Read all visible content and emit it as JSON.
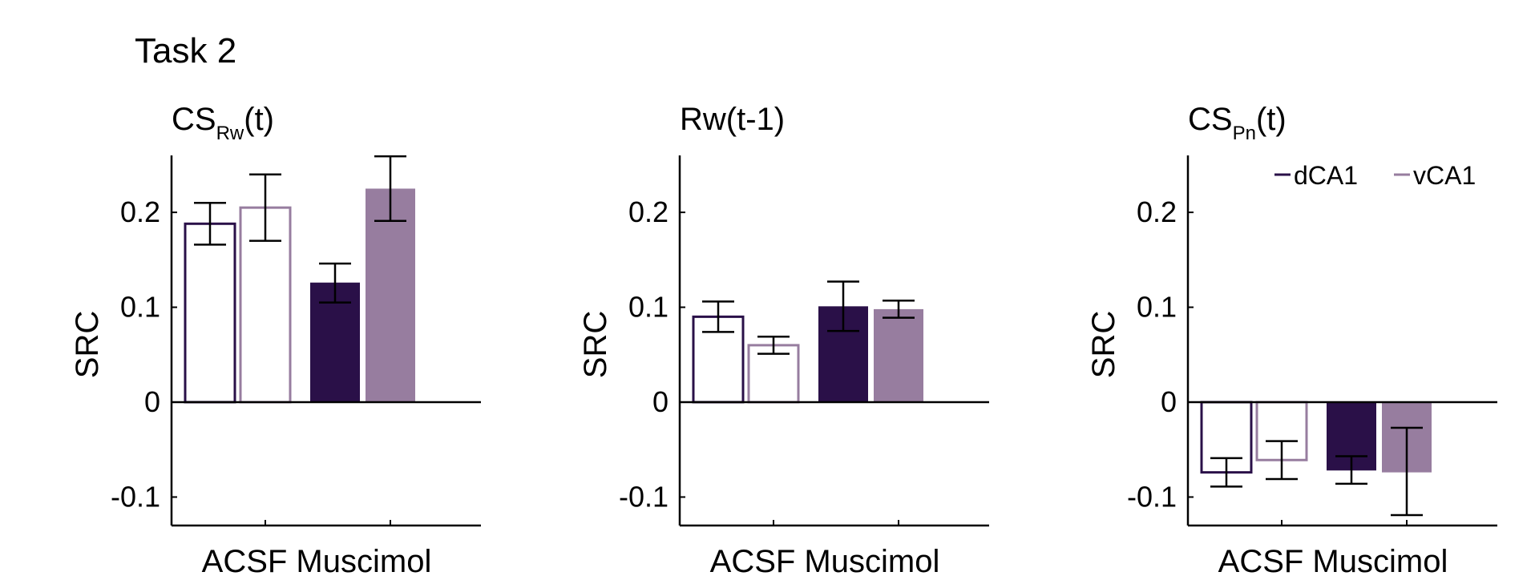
{
  "figure_title": "Task 2",
  "colors": {
    "dCA1": "#2a1048",
    "vCA1": "#977d9f",
    "axis": "#000000",
    "error": "#000000"
  },
  "legend": {
    "placement": "top-right",
    "entries": [
      "dCA1",
      "vCA1"
    ]
  },
  "chart_data": [
    {
      "type": "bar",
      "title_main": "CS",
      "title_sub": "Rw",
      "title_suffix": "(t)",
      "xlabel": "ACSF Muscimol",
      "ylabel": "SRC",
      "ylim": [
        -0.13,
        0.26
      ],
      "yticks": [
        -0.1,
        0,
        0.1,
        0.2
      ],
      "ytick_labels": [
        "-0.1",
        "0",
        "0.1",
        "0.2"
      ],
      "bars": [
        {
          "condition": "ACSF",
          "region": "dCA1",
          "style": "outline",
          "value": 0.188,
          "err_low": 0.166,
          "err_high": 0.21
        },
        {
          "condition": "ACSF",
          "region": "vCA1",
          "style": "outline",
          "value": 0.205,
          "err_low": 0.17,
          "err_high": 0.24
        },
        {
          "condition": "Muscimol",
          "region": "dCA1",
          "style": "filled",
          "value": 0.126,
          "err_low": 0.105,
          "err_high": 0.146
        },
        {
          "condition": "Muscimol",
          "region": "vCA1",
          "style": "filled",
          "value": 0.225,
          "err_low": 0.191,
          "err_high": 0.259
        }
      ]
    },
    {
      "type": "bar",
      "title_main": "Rw(t-1)",
      "title_sub": "",
      "title_suffix": "",
      "xlabel": "ACSF Muscimol",
      "ylabel": "SRC",
      "ylim": [
        -0.13,
        0.26
      ],
      "yticks": [
        -0.1,
        0,
        0.1,
        0.2
      ],
      "ytick_labels": [
        "-0.1",
        "0",
        "0.1",
        "0.2"
      ],
      "bars": [
        {
          "condition": "ACSF",
          "region": "dCA1",
          "style": "outline",
          "value": 0.09,
          "err_low": 0.074,
          "err_high": 0.106
        },
        {
          "condition": "ACSF",
          "region": "vCA1",
          "style": "outline",
          "value": 0.06,
          "err_low": 0.051,
          "err_high": 0.069
        },
        {
          "condition": "Muscimol",
          "region": "dCA1",
          "style": "filled",
          "value": 0.101,
          "err_low": 0.075,
          "err_high": 0.127
        },
        {
          "condition": "Muscimol",
          "region": "vCA1",
          "style": "filled",
          "value": 0.098,
          "err_low": 0.089,
          "err_high": 0.107
        }
      ]
    },
    {
      "type": "bar",
      "title_main": "CS",
      "title_sub": "Pn",
      "title_suffix": "(t)",
      "xlabel": "ACSF Muscimol",
      "ylabel": "SRC",
      "ylim": [
        -0.13,
        0.26
      ],
      "yticks": [
        -0.1,
        0,
        0.1,
        0.2
      ],
      "ytick_labels": [
        "-0.1",
        "0",
        "0.1",
        "0.2"
      ],
      "show_legend": true,
      "bars": [
        {
          "condition": "ACSF",
          "region": "dCA1",
          "style": "outline",
          "value": -0.074,
          "err_low": -0.089,
          "err_high": -0.059
        },
        {
          "condition": "ACSF",
          "region": "vCA1",
          "style": "outline",
          "value": -0.061,
          "err_low": -0.081,
          "err_high": -0.041
        },
        {
          "condition": "Muscimol",
          "region": "dCA1",
          "style": "filled",
          "value": -0.072,
          "err_low": -0.086,
          "err_high": -0.057
        },
        {
          "condition": "Muscimol",
          "region": "vCA1",
          "style": "filled",
          "value": -0.074,
          "err_low": -0.119,
          "err_high": -0.027
        }
      ]
    }
  ]
}
